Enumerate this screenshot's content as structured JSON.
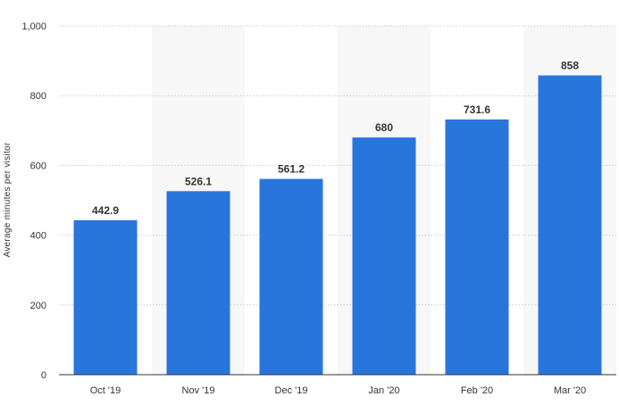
{
  "chart_data": {
    "type": "bar",
    "title": "",
    "xlabel": "",
    "ylabel": "Average minutes per visitor",
    "categories": [
      "Oct '19",
      "Nov '19",
      "Dec '19",
      "Jan '20",
      "Feb '20",
      "Mar '20"
    ],
    "values": [
      442.9,
      526.1,
      561.2,
      680,
      731.6,
      858
    ],
    "value_labels": [
      "442.9",
      "526.1",
      "561.2",
      "680",
      "731.6",
      "858"
    ],
    "ylim": [
      0,
      1000
    ],
    "yticks": [
      0,
      200,
      400,
      600,
      800,
      1000
    ],
    "ytick_labels": [
      "0",
      "200",
      "400",
      "600",
      "800",
      "1,000"
    ],
    "grid": true,
    "alternating_band_shading": true,
    "colors": {
      "bar": "#2875dc",
      "band": "#f7f7f7",
      "grid": "#cccccc",
      "axis": "#333333"
    }
  }
}
